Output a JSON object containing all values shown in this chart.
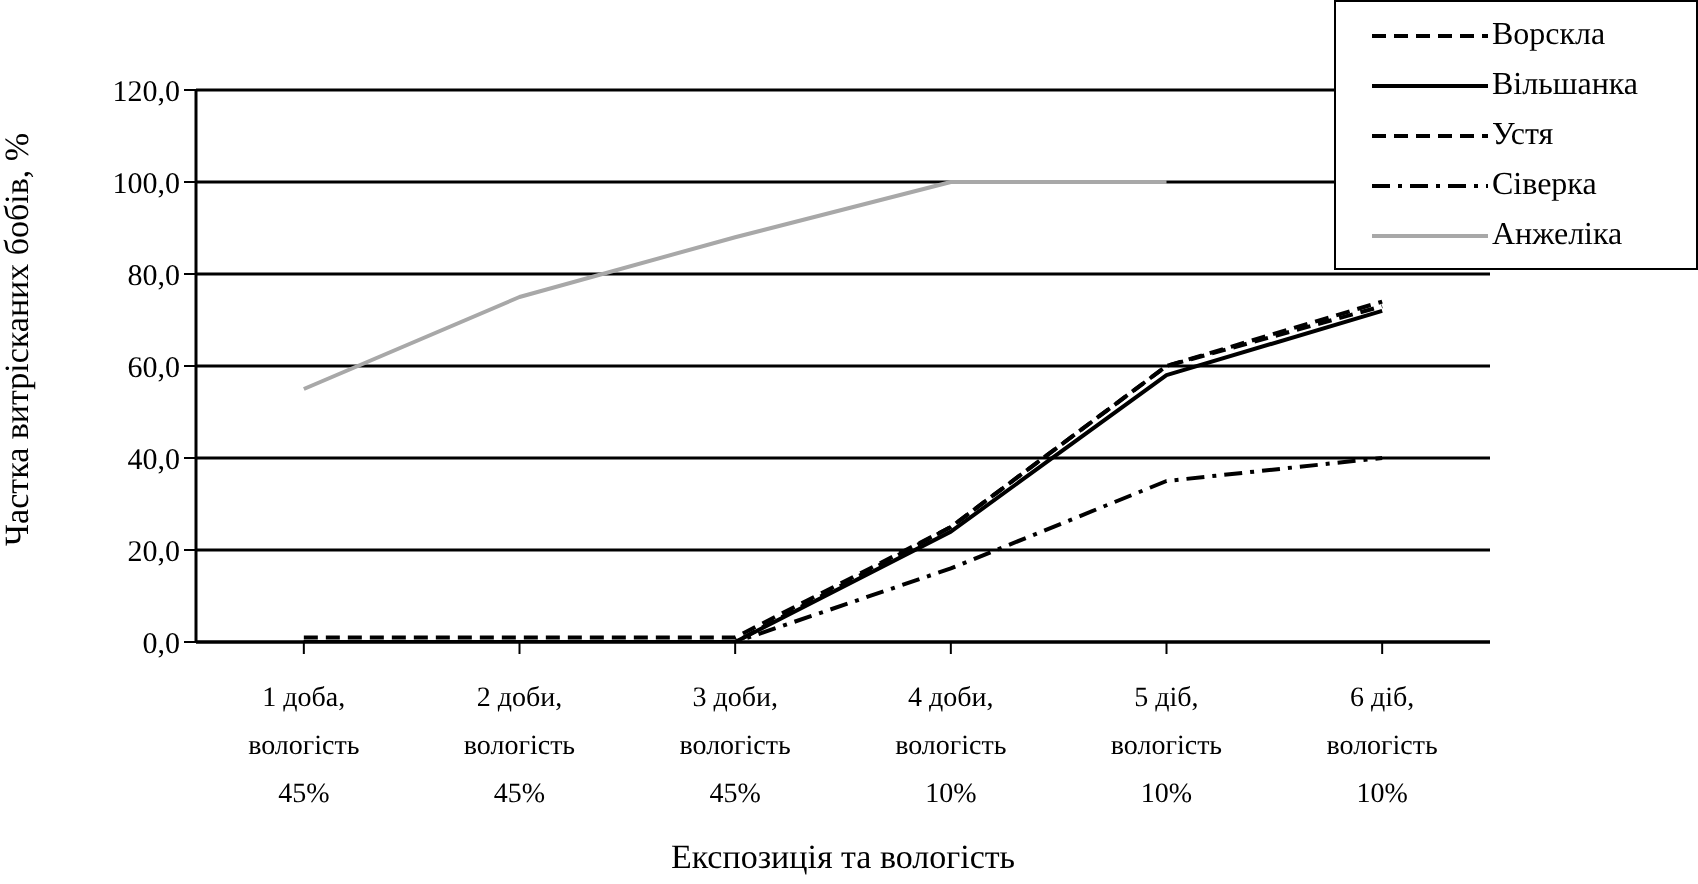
{
  "chart_data": {
    "type": "line",
    "xlabel": "Експозиція та вологість",
    "ylabel": "Частка витрісканих бобів, %",
    "categories": [
      "1 доба,\nвологість\n45%",
      "2 доби,\nвологість\n45%",
      "3 доби,\nвологість\n45%",
      "4 доби,\nвологість\n10%",
      "5 діб,\nвологість\n10%",
      "6 діб,\nвологість\n10%"
    ],
    "ylim": [
      0,
      120
    ],
    "yticks": [
      {
        "value": 0,
        "label": "0,0"
      },
      {
        "value": 20,
        "label": "20,0"
      },
      {
        "value": 40,
        "label": "40,0"
      },
      {
        "value": 60,
        "label": "60,0"
      },
      {
        "value": 80,
        "label": "80,0"
      },
      {
        "value": 100,
        "label": "100,0"
      },
      {
        "value": 120,
        "label": "120,0"
      }
    ],
    "grid": "y",
    "legend": "top right",
    "marker": "none",
    "series": [
      {
        "name": "Ворскла",
        "color": "#000000",
        "line_style": "dashed",
        "values": [
          0,
          0,
          0,
          25,
          60,
          74
        ]
      },
      {
        "name": "Вільшанка",
        "color": "#000000",
        "line_style": "solid",
        "values": [
          0,
          0,
          0,
          24,
          58,
          72
        ]
      },
      {
        "name": "Устя",
        "color": "#000000",
        "line_style": "dashed",
        "values": [
          1,
          1,
          1,
          25,
          60,
          73
        ]
      },
      {
        "name": "Сіверка",
        "color": "#000000",
        "line_style": "dashdot",
        "values": [
          0,
          0,
          0,
          16,
          35,
          40
        ]
      },
      {
        "name": "Анжеліка",
        "color": "#a8a8a8",
        "line_style": "solid",
        "values": [
          55,
          75,
          88,
          100,
          100,
          null
        ]
      }
    ]
  }
}
